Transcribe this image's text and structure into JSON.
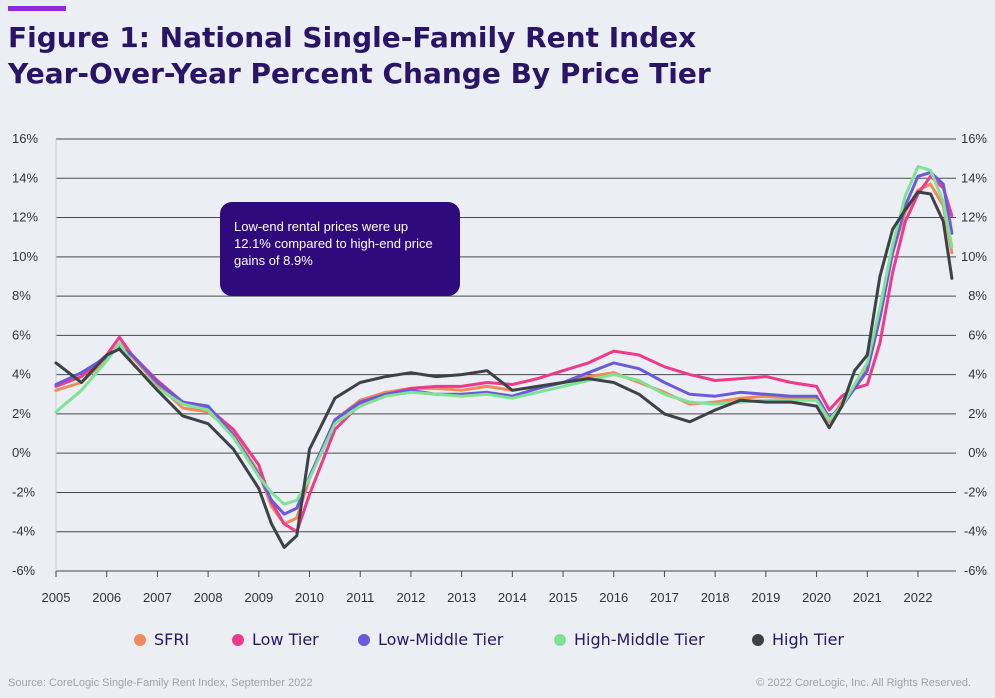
{
  "colors": {
    "accent": "#8b2be2",
    "title": "#2a1466",
    "callout_bg": "#2e0a7d",
    "background": "#ebeff3"
  },
  "title_lines": [
    "Figure 1: National Single-Family Rent Index",
    "Year-Over-Year Percent Change By Price Tier"
  ],
  "annotation": {
    "text": "Low-end rental prices were up 12.1% compared to high-end price gains of 8.9%"
  },
  "footer": {
    "source": "Source: CoreLogic Single-Family Rent Index, September 2022",
    "copyright": "© 2022 CoreLogic, Inc. All Rights Reserved."
  },
  "chart_data": {
    "type": "line",
    "x_tick_labels": [
      "2005",
      "2006",
      "2007",
      "2008",
      "2009",
      "2010",
      "2011",
      "2012",
      "2013",
      "2014",
      "2015",
      "2016",
      "2017",
      "2018",
      "2019",
      "2020",
      "2021",
      "2022"
    ],
    "y_tick_labels": [
      "16%",
      "14%",
      "12%",
      "10%",
      "8%",
      "6%",
      "4%",
      "2%",
      "0%",
      "-2%",
      "-4%",
      "-6%"
    ],
    "xlim": [
      2005,
      2022.75
    ],
    "ylim": [
      -6,
      16
    ],
    "y_unit": "%",
    "grid": "horizontal",
    "legend_position": "bottom",
    "x": [
      2005.0,
      2005.5,
      2006.0,
      2006.25,
      2006.5,
      2007.0,
      2007.5,
      2008.0,
      2008.5,
      2009.0,
      2009.25,
      2009.5,
      2009.75,
      2010.0,
      2010.5,
      2011.0,
      2011.5,
      2012.0,
      2012.5,
      2013.0,
      2013.5,
      2014.0,
      2014.5,
      2015.0,
      2015.5,
      2016.0,
      2016.5,
      2017.0,
      2017.5,
      2018.0,
      2018.5,
      2019.0,
      2019.5,
      2020.0,
      2020.25,
      2020.5,
      2020.75,
      2021.0,
      2021.25,
      2021.5,
      2021.75,
      2022.0,
      2022.25,
      2022.5,
      2022.67
    ],
    "series": [
      {
        "name": "SFRI",
        "color": "#f08a5b",
        "values": [
          3.2,
          3.6,
          4.8,
          5.6,
          4.9,
          3.5,
          2.3,
          2.1,
          1.0,
          -1.0,
          -2.7,
          -3.6,
          -3.3,
          -1.3,
          1.7,
          2.7,
          3.1,
          3.3,
          3.3,
          3.2,
          3.4,
          3.2,
          3.4,
          3.6,
          3.9,
          4.1,
          3.6,
          3.1,
          2.5,
          2.6,
          2.8,
          2.9,
          2.8,
          2.8,
          1.6,
          2.6,
          3.4,
          4.5,
          7.2,
          10.2,
          12.3,
          13.4,
          13.7,
          12.6,
          10.2
        ]
      },
      {
        "name": "Low Tier",
        "color": "#ee3a8c",
        "values": [
          3.4,
          3.9,
          5.0,
          5.9,
          5.0,
          3.7,
          2.6,
          2.3,
          1.2,
          -0.6,
          -2.5,
          -3.6,
          -4.0,
          -2.1,
          1.2,
          2.5,
          3.0,
          3.3,
          3.4,
          3.4,
          3.6,
          3.5,
          3.8,
          4.2,
          4.6,
          5.2,
          5.0,
          4.4,
          4.0,
          3.7,
          3.8,
          3.9,
          3.6,
          3.4,
          2.2,
          2.9,
          3.3,
          3.5,
          5.6,
          9.2,
          11.8,
          13.2,
          14.1,
          13.5,
          12.1
        ]
      },
      {
        "name": "Low-Middle Tier",
        "color": "#6a5adb",
        "values": [
          3.5,
          4.1,
          4.9,
          5.4,
          5.0,
          3.6,
          2.6,
          2.4,
          0.9,
          -1.1,
          -2.4,
          -3.1,
          -2.8,
          -1.2,
          1.7,
          2.6,
          3.0,
          3.2,
          3.0,
          3.0,
          3.1,
          2.9,
          3.3,
          3.6,
          4.1,
          4.6,
          4.3,
          3.6,
          3.0,
          2.9,
          3.1,
          3.0,
          2.9,
          2.9,
          1.8,
          2.4,
          3.3,
          4.2,
          6.9,
          10.2,
          12.6,
          14.1,
          14.3,
          13.7,
          11.2
        ]
      },
      {
        "name": "High-Middle Tier",
        "color": "#7ee394",
        "values": [
          2.1,
          3.2,
          4.7,
          5.6,
          4.6,
          3.3,
          2.5,
          2.2,
          0.8,
          -1.2,
          -2.0,
          -2.6,
          -2.4,
          -1.3,
          1.5,
          2.4,
          2.9,
          3.1,
          3.0,
          2.9,
          3.0,
          2.8,
          3.1,
          3.4,
          3.7,
          4.0,
          3.7,
          3.0,
          2.6,
          2.5,
          2.6,
          2.7,
          2.7,
          2.7,
          1.7,
          2.4,
          3.5,
          4.6,
          7.4,
          10.6,
          13.1,
          14.6,
          14.4,
          12.8,
          10.5
        ]
      },
      {
        "name": "High Tier",
        "color": "#3d4148",
        "values": [
          4.6,
          3.6,
          5.0,
          5.3,
          4.6,
          3.2,
          1.9,
          1.5,
          0.2,
          -1.8,
          -3.6,
          -4.8,
          -4.2,
          0.2,
          2.8,
          3.6,
          3.9,
          4.1,
          3.9,
          4.0,
          4.2,
          3.2,
          3.4,
          3.6,
          3.8,
          3.6,
          3.0,
          2.0,
          1.6,
          2.2,
          2.7,
          2.6,
          2.6,
          2.4,
          1.3,
          2.4,
          4.2,
          5.0,
          9.0,
          11.4,
          12.4,
          13.3,
          13.2,
          11.8,
          8.9
        ]
      }
    ]
  }
}
